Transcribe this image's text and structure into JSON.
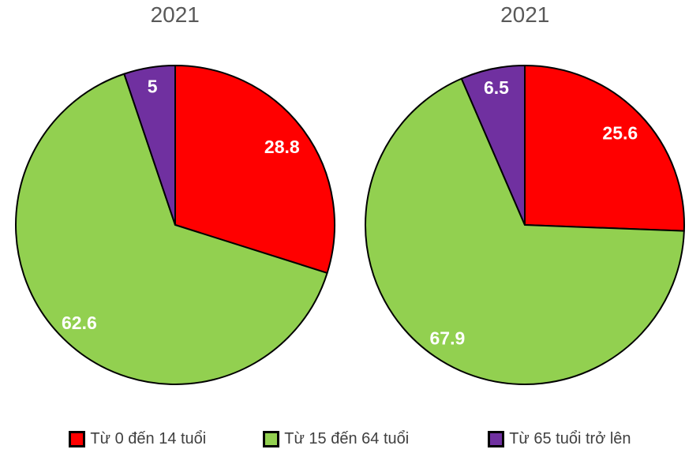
{
  "styles": {
    "background": "#FFFFFF",
    "title_color": "#595959",
    "legend_text_color": "#404040",
    "data_label_color": "#FFFFFF",
    "slice_border_color": "#000000"
  },
  "legend": {
    "position": "bottom",
    "items": [
      {
        "label": "Từ 0 đến 14 tuổi",
        "color": "#FF0000"
      },
      {
        "label": "Từ 15 đến 64 tuổi",
        "color": "#92D050"
      },
      {
        "label": "Từ 65 tuổi trở lên",
        "color": "#7030A0"
      }
    ]
  },
  "chart_data": [
    {
      "type": "pie",
      "title": "2021",
      "categories": [
        "Từ 0 đến 14 tuổi",
        "Từ 15 đến 64 tuổi",
        "Từ 65 tuổi trở lên"
      ],
      "values": [
        28.8,
        62.6,
        5
      ],
      "data_labels": [
        "28.8",
        "62.6",
        "5"
      ],
      "colors": [
        "#FF0000",
        "#92D050",
        "#7030A0"
      ],
      "start_angle_deg": 0,
      "direction": "clockwise",
      "legend_position": "bottom"
    },
    {
      "type": "pie",
      "title": "2021",
      "categories": [
        "Từ 0 đến 14 tuổi",
        "Từ 15 đến 64 tuổi",
        "Từ 65 tuổi trở lên"
      ],
      "values": [
        25.6,
        67.9,
        6.5
      ],
      "data_labels": [
        "25.6",
        "67.9",
        "6.5"
      ],
      "colors": [
        "#FF0000",
        "#92D050",
        "#7030A0"
      ],
      "start_angle_deg": 0,
      "direction": "clockwise",
      "legend_position": "bottom"
    }
  ]
}
